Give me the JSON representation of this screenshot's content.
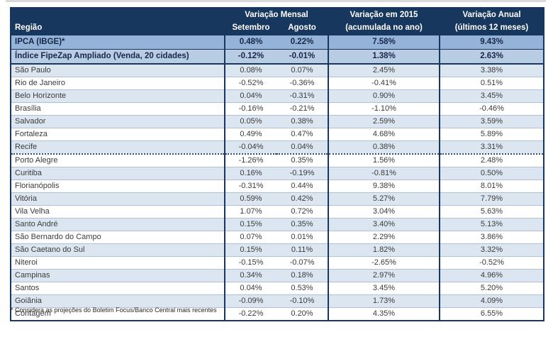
{
  "chart_data": {
    "type": "table",
    "header": {
      "region": "Região",
      "monthly_title": "Variação Mensal",
      "monthly_sub_setembro": "Setembro",
      "monthly_sub_agosto": "Agosto",
      "ytd_title": "Variação em 2015",
      "ytd_sub": "(acumulada no ano)",
      "annual_title": "Variação Anual",
      "annual_sub": "(últimos 12 meses)"
    },
    "rows": [
      {
        "region": "IPCA (IBGE)*",
        "setembro": "0.48%",
        "agosto": "0.22%",
        "ytd": "7.58%",
        "annual": "9.43%"
      },
      {
        "region": "Índice FipeZap Ampliado (Venda, 20 cidades)",
        "setembro": "-0.12%",
        "agosto": "-0.01%",
        "ytd": "1.38%",
        "annual": "2.63%"
      },
      {
        "region": "São Paulo",
        "setembro": "0.08%",
        "agosto": "0.07%",
        "ytd": "2.45%",
        "annual": "3.38%"
      },
      {
        "region": "Rio de Janeiro",
        "setembro": "-0.52%",
        "agosto": "-0.36%",
        "ytd": "-0.41%",
        "annual": "0.51%"
      },
      {
        "region": "Belo Horizonte",
        "setembro": "0.04%",
        "agosto": "-0.31%",
        "ytd": "0.90%",
        "annual": "3.45%"
      },
      {
        "region": "Brasília",
        "setembro": "-0.16%",
        "agosto": "-0.21%",
        "ytd": "-1.10%",
        "annual": "-0.46%"
      },
      {
        "region": "Salvador",
        "setembro": "0.05%",
        "agosto": "0.38%",
        "ytd": "2.59%",
        "annual": "3.59%"
      },
      {
        "region": "Fortaleza",
        "setembro": "0.49%",
        "agosto": "0.47%",
        "ytd": "4.68%",
        "annual": "5.89%"
      },
      {
        "region": "Recife",
        "setembro": "-0.04%",
        "agosto": "0.04%",
        "ytd": "0.38%",
        "annual": "3.31%"
      },
      {
        "region": "Porto Alegre",
        "setembro": "-1.26%",
        "agosto": "0.35%",
        "ytd": "1.56%",
        "annual": "2.48%"
      },
      {
        "region": "Curitiba",
        "setembro": "0.16%",
        "agosto": "-0.19%",
        "ytd": "-0.81%",
        "annual": "0.50%"
      },
      {
        "region": "Florianópolis",
        "setembro": "-0.31%",
        "agosto": "0.44%",
        "ytd": "9.38%",
        "annual": "8.01%"
      },
      {
        "region": "Vitória",
        "setembro": "0.59%",
        "agosto": "0.42%",
        "ytd": "5.27%",
        "annual": "7.79%"
      },
      {
        "region": "Vila Velha",
        "setembro": "1.07%",
        "agosto": "0.72%",
        "ytd": "3.04%",
        "annual": "5.63%"
      },
      {
        "region": "Santo André",
        "setembro": "0.15%",
        "agosto": "0.35%",
        "ytd": "3.40%",
        "annual": "5.13%"
      },
      {
        "region": "São Bernardo do Campo",
        "setembro": "0.07%",
        "agosto": "0.01%",
        "ytd": "2.29%",
        "annual": "3.86%"
      },
      {
        "region": "São Caetano do Sul",
        "setembro": "0.15%",
        "agosto": "0.11%",
        "ytd": "1.82%",
        "annual": "3.32%"
      },
      {
        "region": "Niteroi",
        "setembro": "-0.15%",
        "agosto": "-0.07%",
        "ytd": "-2.65%",
        "annual": "-0.52%"
      },
      {
        "region": "Campinas",
        "setembro": "0.34%",
        "agosto": "0.18%",
        "ytd": "2.97%",
        "annual": "4.96%"
      },
      {
        "region": "Santos",
        "setembro": "0.04%",
        "agosto": "0.53%",
        "ytd": "3.45%",
        "annual": "5.20%"
      },
      {
        "region": "Goiânia",
        "setembro": "-0.09%",
        "agosto": "-0.10%",
        "ytd": "1.73%",
        "annual": "4.09%"
      },
      {
        "region": "Contagem",
        "setembro": "-0.22%",
        "agosto": "0.20%",
        "ytd": "4.35%",
        "annual": "6.55%"
      }
    ]
  },
  "footnote": "* Considera as projeções do Boletim Focus/Banco Central mais recentes",
  "colors": {
    "header_bg": "#17375E",
    "ipca_row_bg": "#95B3D7",
    "fipezap_row_bg": "#B8CCE4",
    "alt_row_bg": "#DCE6F1",
    "border_navy": "#17375E",
    "row_border": "#aebfd8",
    "top_strip": "#d9d9d9"
  }
}
